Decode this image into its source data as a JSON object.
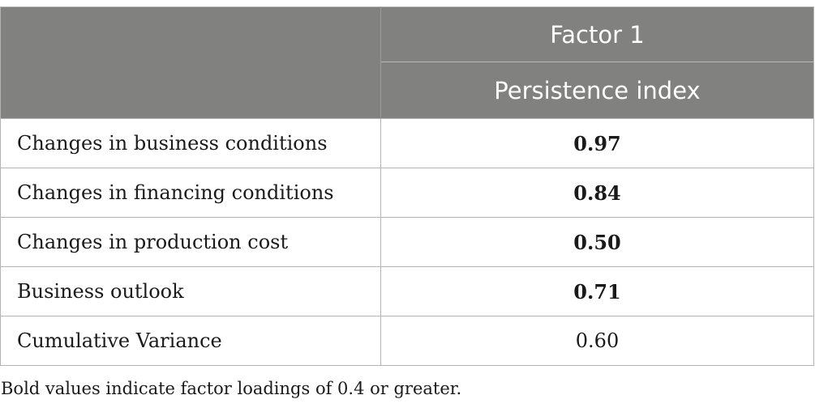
{
  "header": {
    "factor_label": "Factor 1",
    "index_label": "Persistence index"
  },
  "rows": [
    {
      "label": "Changes in business conditions",
      "value": "0.97",
      "bold": true
    },
    {
      "label": "Changes in financing conditions",
      "value": "0.84",
      "bold": true
    },
    {
      "label": "Changes in production cost",
      "value": "0.50",
      "bold": true
    },
    {
      "label": "Business outlook",
      "value": "0.71",
      "bold": true
    },
    {
      "label": "Cumulative Variance",
      "value": "0.60",
      "bold": false
    }
  ],
  "footnote": "Bold values indicate factor loadings of 0.4 or greater."
}
